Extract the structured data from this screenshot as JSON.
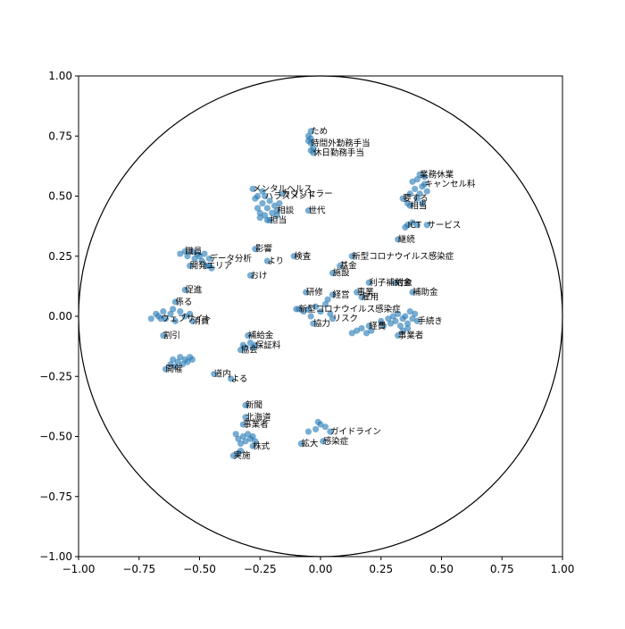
{
  "chart_data": {
    "type": "scatter",
    "title": "",
    "xlabel": "",
    "ylabel": "",
    "xlim": [
      -1.0,
      1.0
    ],
    "ylim": [
      -1.0,
      1.0
    ],
    "grid": false,
    "unit_circle": true,
    "point_color": "#1f77b4",
    "x_ticks": [
      "−1.00",
      "−0.75",
      "−0.50",
      "−0.25",
      "0.00",
      "0.25",
      "0.50",
      "0.75",
      "1.00"
    ],
    "y_ticks": [
      "−1.00",
      "−0.75",
      "−0.50",
      "−0.25",
      "0.00",
      "0.25",
      "0.50",
      "0.75",
      "1.00"
    ],
    "points": [
      {
        "label": "ため",
        "x": -0.04,
        "y": 0.77
      },
      {
        "label": "時間外勤務手当",
        "x": -0.04,
        "y": 0.72
      },
      {
        "label": "休日勤務手当",
        "x": -0.03,
        "y": 0.68
      },
      {
        "label": "",
        "x": -0.05,
        "y": 0.73
      },
      {
        "label": "",
        "x": -0.04,
        "y": 0.69
      },
      {
        "label": "",
        "x": -0.03,
        "y": 0.7
      },
      {
        "label": "",
        "x": -0.05,
        "y": 0.75
      },
      {
        "label": "",
        "x": -0.04,
        "y": 0.74
      },
      {
        "label": "メンタルヘルス",
        "x": -0.28,
        "y": 0.53
      },
      {
        "label": "ハラスメント",
        "x": -0.23,
        "y": 0.5
      },
      {
        "label": "カウンセラー",
        "x": -0.16,
        "y": 0.51
      },
      {
        "label": "世代",
        "x": -0.05,
        "y": 0.44
      },
      {
        "label": "相談",
        "x": -0.18,
        "y": 0.44
      },
      {
        "label": "担当",
        "x": -0.21,
        "y": 0.4
      },
      {
        "label": "",
        "x": -0.27,
        "y": 0.49
      },
      {
        "label": "",
        "x": -0.26,
        "y": 0.45
      },
      {
        "label": "",
        "x": -0.25,
        "y": 0.43
      },
      {
        "label": "",
        "x": -0.24,
        "y": 0.47
      },
      {
        "label": "",
        "x": -0.23,
        "y": 0.42
      },
      {
        "label": "",
        "x": -0.22,
        "y": 0.45
      },
      {
        "label": "",
        "x": -0.21,
        "y": 0.48
      },
      {
        "label": "",
        "x": -0.2,
        "y": 0.43
      },
      {
        "label": "",
        "x": -0.19,
        "y": 0.46
      },
      {
        "label": "",
        "x": -0.25,
        "y": 0.41
      },
      {
        "label": "",
        "x": -0.22,
        "y": 0.4
      },
      {
        "label": "",
        "x": -0.17,
        "y": 0.47
      },
      {
        "label": "",
        "x": -0.18,
        "y": 0.42
      },
      {
        "label": "",
        "x": -0.26,
        "y": 0.5
      },
      {
        "label": "",
        "x": -0.24,
        "y": 0.52
      },
      {
        "label": "業務休業",
        "x": 0.41,
        "y": 0.59
      },
      {
        "label": "キャンセル料",
        "x": 0.43,
        "y": 0.55
      },
      {
        "label": "要する",
        "x": 0.34,
        "y": 0.49
      },
      {
        "label": "相当",
        "x": 0.37,
        "y": 0.46
      },
      {
        "label": "",
        "x": 0.38,
        "y": 0.56
      },
      {
        "label": "",
        "x": 0.39,
        "y": 0.53
      },
      {
        "label": "",
        "x": 0.4,
        "y": 0.57
      },
      {
        "label": "",
        "x": 0.41,
        "y": 0.51
      },
      {
        "label": "",
        "x": 0.42,
        "y": 0.54
      },
      {
        "label": "",
        "x": 0.43,
        "y": 0.58
      },
      {
        "label": "",
        "x": 0.4,
        "y": 0.49
      },
      {
        "label": "",
        "x": 0.44,
        "y": 0.52
      },
      {
        "label": "",
        "x": 0.36,
        "y": 0.47
      },
      {
        "label": "",
        "x": 0.37,
        "y": 0.51
      },
      {
        "label": "",
        "x": 0.42,
        "y": 0.47
      },
      {
        "label": "ICT",
        "x": 0.36,
        "y": 0.38
      },
      {
        "label": "サービス",
        "x": 0.44,
        "y": 0.38
      },
      {
        "label": "",
        "x": 0.35,
        "y": 0.37
      },
      {
        "label": "",
        "x": 0.38,
        "y": 0.39
      },
      {
        "label": "",
        "x": 0.4,
        "y": 0.38
      },
      {
        "label": "継続",
        "x": 0.32,
        "y": 0.32
      },
      {
        "label": "影響",
        "x": -0.27,
        "y": 0.28
      },
      {
        "label": "より",
        "x": -0.22,
        "y": 0.23
      },
      {
        "label": "おけ",
        "x": -0.29,
        "y": 0.17
      },
      {
        "label": "検査",
        "x": -0.11,
        "y": 0.25
      },
      {
        "label": "新型コロナウイルス感染症",
        "x": 0.13,
        "y": 0.25
      },
      {
        "label": "基金",
        "x": 0.08,
        "y": 0.21
      },
      {
        "label": "施設",
        "x": 0.05,
        "y": 0.18
      },
      {
        "label": "職員",
        "x": -0.56,
        "y": 0.27
      },
      {
        "label": "データ分析",
        "x": -0.46,
        "y": 0.24
      },
      {
        "label": "エリア",
        "x": -0.47,
        "y": 0.21
      },
      {
        "label": "開発",
        "x": -0.54,
        "y": 0.21
      },
      {
        "label": "",
        "x": -0.58,
        "y": 0.26
      },
      {
        "label": "",
        "x": -0.55,
        "y": 0.25
      },
      {
        "label": "",
        "x": -0.53,
        "y": 0.27
      },
      {
        "label": "",
        "x": -0.52,
        "y": 0.24
      },
      {
        "label": "",
        "x": -0.51,
        "y": 0.26
      },
      {
        "label": "",
        "x": -0.5,
        "y": 0.25
      },
      {
        "label": "",
        "x": -0.49,
        "y": 0.23
      },
      {
        "label": "",
        "x": -0.48,
        "y": 0.26
      },
      {
        "label": "",
        "x": -0.46,
        "y": 0.21
      },
      {
        "label": "",
        "x": -0.45,
        "y": 0.2
      },
      {
        "label": "促進",
        "x": -0.56,
        "y": 0.11
      },
      {
        "label": "係る",
        "x": -0.6,
        "y": 0.06
      },
      {
        "label": "ウェブサイト",
        "x": -0.66,
        "y": -0.01
      },
      {
        "label": "消費",
        "x": -0.53,
        "y": -0.02
      },
      {
        "label": "割引",
        "x": -0.65,
        "y": -0.08
      },
      {
        "label": "",
        "x": -0.7,
        "y": -0.01
      },
      {
        "label": "",
        "x": -0.68,
        "y": 0.01
      },
      {
        "label": "",
        "x": -0.67,
        "y": 0.0
      },
      {
        "label": "",
        "x": -0.65,
        "y": 0.02
      },
      {
        "label": "",
        "x": -0.64,
        "y": -0.01
      },
      {
        "label": "",
        "x": -0.62,
        "y": 0.01
      },
      {
        "label": "",
        "x": -0.61,
        "y": 0.03
      },
      {
        "label": "",
        "x": -0.6,
        "y": -0.02
      },
      {
        "label": "",
        "x": -0.58,
        "y": 0.02
      },
      {
        "label": "",
        "x": -0.56,
        "y": 0.0
      },
      {
        "label": "",
        "x": -0.54,
        "y": 0.01
      },
      {
        "label": "開催",
        "x": -0.64,
        "y": -0.22
      },
      {
        "label": "道内",
        "x": -0.44,
        "y": -0.24
      },
      {
        "label": "よる",
        "x": -0.37,
        "y": -0.26
      },
      {
        "label": "",
        "x": -0.62,
        "y": -0.2
      },
      {
        "label": "",
        "x": -0.61,
        "y": -0.18
      },
      {
        "label": "",
        "x": -0.6,
        "y": -0.21
      },
      {
        "label": "",
        "x": -0.59,
        "y": -0.19
      },
      {
        "label": "",
        "x": -0.58,
        "y": -0.17
      },
      {
        "label": "",
        "x": -0.57,
        "y": -0.2
      },
      {
        "label": "",
        "x": -0.56,
        "y": -0.18
      },
      {
        "label": "",
        "x": -0.55,
        "y": -0.19
      },
      {
        "label": "",
        "x": -0.54,
        "y": -0.17
      },
      {
        "label": "",
        "x": -0.53,
        "y": -0.18
      },
      {
        "label": "補給金",
        "x": -0.3,
        "y": -0.08
      },
      {
        "label": "保証料",
        "x": -0.27,
        "y": -0.12
      },
      {
        "label": "協会",
        "x": -0.33,
        "y": -0.14
      },
      {
        "label": "",
        "x": -0.32,
        "y": -0.12
      },
      {
        "label": "",
        "x": -0.31,
        "y": -0.13
      },
      {
        "label": "",
        "x": -0.29,
        "y": -0.11
      },
      {
        "label": "",
        "x": -0.28,
        "y": -0.13
      },
      {
        "label": "研修",
        "x": -0.06,
        "y": 0.1
      },
      {
        "label": "経営",
        "x": 0.05,
        "y": 0.09
      },
      {
        "label": "新型コロナウイルス感染症",
        "x": -0.09,
        "y": 0.03
      },
      {
        "label": "協力",
        "x": -0.03,
        "y": -0.03
      },
      {
        "label": "リスク",
        "x": 0.05,
        "y": -0.01
      },
      {
        "label": "",
        "x": -0.1,
        "y": 0.03
      },
      {
        "label": "",
        "x": -0.07,
        "y": 0.02
      },
      {
        "label": "",
        "x": -0.05,
        "y": 0.03
      },
      {
        "label": "",
        "x": -0.02,
        "y": 0.04
      },
      {
        "label": "",
        "x": 0.0,
        "y": 0.02
      },
      {
        "label": "",
        "x": 0.02,
        "y": 0.05
      },
      {
        "label": "",
        "x": 0.03,
        "y": 0.07
      },
      {
        "label": "",
        "x": 0.04,
        "y": 0.01
      },
      {
        "label": "",
        "x": -0.04,
        "y": 0.0
      },
      {
        "label": "利子補給金",
        "x": 0.2,
        "y": 0.14
      },
      {
        "label": "事業",
        "x": 0.15,
        "y": 0.1
      },
      {
        "label": "雇用",
        "x": 0.17,
        "y": 0.08
      },
      {
        "label": "対象",
        "x": 0.31,
        "y": 0.14
      },
      {
        "label": "補助金",
        "x": 0.38,
        "y": 0.1
      },
      {
        "label": "経費",
        "x": 0.2,
        "y": -0.04
      },
      {
        "label": "手続き",
        "x": 0.4,
        "y": -0.02
      },
      {
        "label": "事業者",
        "x": 0.32,
        "y": -0.08
      },
      {
        "label": "",
        "x": 0.13,
        "y": -0.07
      },
      {
        "label": "",
        "x": 0.15,
        "y": -0.06
      },
      {
        "label": "",
        "x": 0.17,
        "y": -0.05
      },
      {
        "label": "",
        "x": 0.19,
        "y": -0.07
      },
      {
        "label": "",
        "x": 0.21,
        "y": -0.06
      },
      {
        "label": "",
        "x": 0.25,
        "y": -0.02
      },
      {
        "label": "",
        "x": 0.26,
        "y": -0.04
      },
      {
        "label": "",
        "x": 0.28,
        "y": -0.01
      },
      {
        "label": "",
        "x": 0.29,
        "y": -0.03
      },
      {
        "label": "",
        "x": 0.3,
        "y": 0.0
      },
      {
        "label": "",
        "x": 0.31,
        "y": -0.02
      },
      {
        "label": "",
        "x": 0.32,
        "y": 0.01
      },
      {
        "label": "",
        "x": 0.33,
        "y": -0.04
      },
      {
        "label": "",
        "x": 0.34,
        "y": -0.01
      },
      {
        "label": "",
        "x": 0.35,
        "y": 0.0
      },
      {
        "label": "",
        "x": 0.36,
        "y": -0.03
      },
      {
        "label": "",
        "x": 0.37,
        "y": 0.02
      },
      {
        "label": "",
        "x": 0.38,
        "y": -0.01
      },
      {
        "label": "",
        "x": 0.39,
        "y": 0.01
      },
      {
        "label": "",
        "x": 0.34,
        "y": -0.06
      },
      {
        "label": "",
        "x": 0.36,
        "y": -0.05
      },
      {
        "label": "新聞",
        "x": -0.31,
        "y": -0.37
      },
      {
        "label": "北海道",
        "x": -0.31,
        "y": -0.42
      },
      {
        "label": "事業者",
        "x": -0.32,
        "y": -0.45
      },
      {
        "label": "株式",
        "x": -0.28,
        "y": -0.54
      },
      {
        "label": "実施",
        "x": -0.36,
        "y": -0.58
      },
      {
        "label": "",
        "x": -0.35,
        "y": -0.49
      },
      {
        "label": "",
        "x": -0.34,
        "y": -0.51
      },
      {
        "label": "",
        "x": -0.33,
        "y": -0.53
      },
      {
        "label": "",
        "x": -0.32,
        "y": -0.5
      },
      {
        "label": "",
        "x": -0.31,
        "y": -0.52
      },
      {
        "label": "",
        "x": -0.3,
        "y": -0.49
      },
      {
        "label": "",
        "x": -0.29,
        "y": -0.51
      },
      {
        "label": "",
        "x": -0.28,
        "y": -0.5
      },
      {
        "label": "",
        "x": -0.27,
        "y": -0.52
      },
      {
        "label": "",
        "x": -0.33,
        "y": -0.56
      },
      {
        "label": "",
        "x": -0.34,
        "y": -0.57
      },
      {
        "label": "ガイドライン",
        "x": 0.04,
        "y": -0.48
      },
      {
        "label": "感染症",
        "x": 0.01,
        "y": -0.52
      },
      {
        "label": "拡大",
        "x": -0.08,
        "y": -0.53
      },
      {
        "label": "",
        "x": -0.01,
        "y": -0.44
      },
      {
        "label": "",
        "x": 0.0,
        "y": -0.45
      },
      {
        "label": "",
        "x": -0.02,
        "y": -0.47
      },
      {
        "label": "",
        "x": -0.05,
        "y": -0.48
      },
      {
        "label": "",
        "x": 0.02,
        "y": -0.46
      }
    ]
  }
}
